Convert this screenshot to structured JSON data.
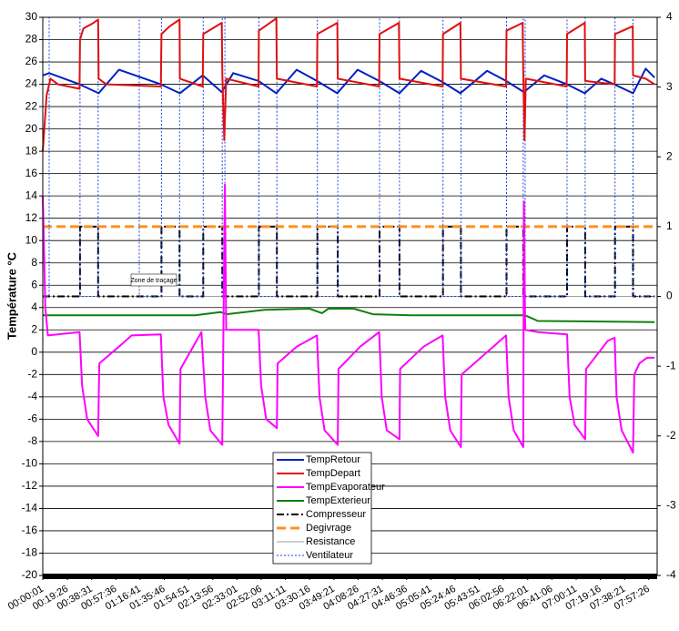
{
  "chart_data": {
    "type": "line",
    "ylabel": "Température °C",
    "annotation": "Zone de traçage",
    "xlim": [
      0,
      484
    ],
    "xticks": [
      {
        "value": 0.02,
        "label": "00:00:01"
      },
      {
        "value": 19.43,
        "label": "00:19:26"
      },
      {
        "value": 38.52,
        "label": "00:38:31"
      },
      {
        "value": 57.6,
        "label": "00:57:36"
      },
      {
        "value": 76.68,
        "label": "01:16:41"
      },
      {
        "value": 95.77,
        "label": "01:35:46"
      },
      {
        "value": 114.85,
        "label": "01:54:51"
      },
      {
        "value": 133.93,
        "label": "02:13:56"
      },
      {
        "value": 153.02,
        "label": "02:33:01"
      },
      {
        "value": 172.1,
        "label": "02:52:06"
      },
      {
        "value": 191.18,
        "label": "03:11:11"
      },
      {
        "value": 210.27,
        "label": "03:30:16"
      },
      {
        "value": 229.35,
        "label": "03:49:21"
      },
      {
        "value": 248.43,
        "label": "04:08:26"
      },
      {
        "value": 267.52,
        "label": "04:27:31"
      },
      {
        "value": 286.6,
        "label": "04:46:36"
      },
      {
        "value": 305.68,
        "label": "05:05:41"
      },
      {
        "value": 324.77,
        "label": "05:24:46"
      },
      {
        "value": 343.85,
        "label": "05:43:51"
      },
      {
        "value": 362.93,
        "label": "06:02:56"
      },
      {
        "value": 382.02,
        "label": "06:22:01"
      },
      {
        "value": 401.1,
        "label": "06:41:06"
      },
      {
        "value": 420.18,
        "label": "07:00:11"
      },
      {
        "value": 439.27,
        "label": "07:19:16"
      },
      {
        "value": 458.35,
        "label": "07:38:21"
      },
      {
        "value": 477.43,
        "label": "07:57:26"
      }
    ],
    "ylim": [
      -20,
      30
    ],
    "yticks": [
      -20,
      -18,
      -16,
      -14,
      -12,
      -10,
      -8,
      -6,
      -4,
      -2,
      0,
      2,
      4,
      6,
      8,
      10,
      12,
      14,
      16,
      18,
      20,
      22,
      24,
      26,
      28,
      30
    ],
    "y2lim": [
      -4,
      4
    ],
    "y2ticks": [
      -4,
      -3,
      -2,
      -1,
      0,
      1,
      2,
      3,
      4
    ],
    "grid": true,
    "series": [
      {
        "name": "TempRetour",
        "color": "#0020c0",
        "line_style": "solid",
        "x": [
          0,
          5,
          29,
          44,
          60,
          93,
          108,
          126,
          141,
          150,
          170,
          184,
          200,
          216,
          232,
          248,
          265,
          281,
          298,
          315,
          329,
          350,
          365,
          379,
          395,
          413,
          427,
          440,
          450,
          465,
          475,
          482
        ],
        "values": [
          24.8,
          25,
          24,
          23.2,
          25.3,
          24,
          23.2,
          24.8,
          23.3,
          25,
          24.3,
          23.2,
          25.3,
          24.3,
          23.2,
          25.3,
          24.3,
          23.2,
          25.2,
          24.2,
          23.2,
          25.2,
          24.3,
          23.3,
          24.8,
          24,
          23.2,
          24.5,
          24,
          23.2,
          25.4,
          24.6
        ]
      },
      {
        "name": "TempDepart",
        "color": "#e01010",
        "line_style": "solid",
        "x": [
          0,
          3,
          6,
          12,
          29,
          29.3,
          32,
          40,
          43.6,
          44,
          50,
          93,
          93.5,
          100,
          107.8,
          108,
          126,
          126.4,
          141,
          141.5,
          143,
          144.5,
          170,
          170.2,
          184,
          184.4,
          216,
          216.3,
          232,
          232.4,
          265,
          265.3,
          280.6,
          281,
          315,
          315.3,
          329,
          329.4,
          365,
          365.3,
          378,
          378.5,
          379.5,
          380.5,
          412.7,
          413,
          427,
          427.3,
          450.5,
          450.8,
          464.8,
          465,
          475,
          482
        ],
        "values": [
          18,
          23,
          24.5,
          24,
          23.6,
          28,
          29,
          29.5,
          29.8,
          24.5,
          24,
          23.8,
          28.5,
          29.2,
          29.8,
          24.5,
          23.8,
          28.5,
          29.5,
          24.8,
          19,
          24.5,
          23.8,
          28.8,
          29.9,
          24.5,
          23.8,
          28.5,
          29.5,
          24.5,
          23.8,
          28.5,
          29.5,
          24.5,
          23.8,
          28.5,
          29.5,
          24.5,
          23.8,
          28.8,
          29.5,
          25,
          19,
          24.5,
          23.8,
          28.5,
          29.5,
          24.3,
          24,
          28.5,
          29.2,
          24.8,
          24.5,
          24
        ]
      },
      {
        "name": "TempEvaporateur",
        "color": "#ff00ff",
        "line_style": "solid",
        "x": [
          0,
          2,
          4,
          29,
          31,
          35,
          43.6,
          44.5,
          60,
          70,
          93,
          95,
          99,
          107.8,
          108.5,
          125,
          128,
          132,
          141.4,
          143.5,
          144.5,
          170,
          172,
          176,
          184.4,
          185,
          200,
          216,
          218,
          222,
          232.4,
          233,
          250,
          265,
          267,
          271,
          281,
          281.5,
          300,
          315,
          317,
          321,
          329.4,
          330,
          350,
          365,
          367,
          371,
          378.5,
          379,
          380,
          390,
          413,
          415,
          419,
          427.3,
          428,
          445,
          450.5,
          452,
          456,
          465,
          466,
          470,
          476,
          482
        ],
        "values": [
          14,
          4,
          1.5,
          1.8,
          -3,
          -6,
          -7.5,
          -1,
          0.5,
          1.5,
          1.6,
          -4,
          -6.5,
          -8.2,
          -1.5,
          1.8,
          -4,
          -7,
          -8.3,
          15,
          2,
          2,
          -3,
          -6,
          -6.8,
          -1,
          0.5,
          1.5,
          -4,
          -7,
          -8.3,
          -1.5,
          0.5,
          1.8,
          -4,
          -7,
          -7.8,
          -1.5,
          0.5,
          1.5,
          -4,
          -7,
          -8.5,
          -2,
          0,
          1.5,
          -4,
          -7,
          -8.5,
          13.5,
          2,
          1.8,
          1.6,
          -4,
          -6.5,
          -7.8,
          -1.5,
          1,
          1.3,
          -4,
          -7,
          -9,
          -2,
          -1,
          -0.5,
          -0.5
        ]
      },
      {
        "name": "TempExterieur",
        "color": "#108010",
        "line_style": "solid",
        "x": [
          0,
          120,
          140,
          145,
          175,
          210,
          220,
          225,
          245,
          260,
          290,
          380,
          390,
          482
        ],
        "values": [
          3.3,
          3.3,
          3.6,
          3.4,
          3.8,
          3.9,
          3.5,
          3.9,
          3.9,
          3.4,
          3.3,
          3.3,
          2.8,
          2.7
        ]
      },
      {
        "name": "Compresseur",
        "color": "#000000",
        "line_style": "dashdot",
        "axis": "y2",
        "x": [
          0,
          29.3,
          29.3,
          43.6,
          43.6,
          93.5,
          93.5,
          107.8,
          107.8,
          126.4,
          126.4,
          141.4,
          141.4,
          170.2,
          170.2,
          184.4,
          184.4,
          216.3,
          216.3,
          232.4,
          232.4,
          265.3,
          265.3,
          281,
          281,
          315.3,
          315.3,
          329.4,
          329.4,
          365.3,
          365.3,
          378.5,
          378.5,
          413,
          413,
          427.3,
          427.3,
          450.8,
          450.8,
          465,
          465,
          482
        ],
        "values": [
          0,
          0,
          1,
          1,
          0,
          0,
          1,
          1,
          0,
          0,
          1,
          1,
          0,
          0,
          1,
          1,
          0,
          0,
          1,
          1,
          0,
          0,
          1,
          1,
          0,
          0,
          1,
          1,
          0,
          0,
          1,
          1,
          0,
          0,
          1,
          1,
          0,
          0,
          1,
          1,
          0,
          0
        ]
      },
      {
        "name": "Degivrage",
        "color": "#ff9020",
        "line_style": "dashed",
        "axis": "y2",
        "x": [
          0,
          482
        ],
        "values": [
          1,
          1
        ]
      },
      {
        "name": "Resistance",
        "color": "#a0a0a0",
        "line_style": "solid",
        "axis": "y2",
        "x": [
          0,
          482
        ],
        "values": [
          0,
          0
        ]
      },
      {
        "name": "Ventilateur",
        "color": "#2040e0",
        "line_style": "dotted",
        "axis": "y2",
        "x": [
          0,
          5,
          5,
          29.3,
          29.3,
          43.6,
          43.6,
          76,
          76,
          93.5,
          93.5,
          107.8,
          107.8,
          126.4,
          126.4,
          141.4,
          141.4,
          143.5,
          143.5,
          170.2,
          170.2,
          184.4,
          184.4,
          216.3,
          216.3,
          232.4,
          232.4,
          265.3,
          265.3,
          281,
          281,
          315.3,
          315.3,
          329.4,
          329.4,
          365.3,
          365.3,
          378.5,
          378.5,
          380,
          380,
          413,
          413,
          427.3,
          427.3,
          450.8,
          450.8,
          465,
          465,
          482
        ],
        "values": [
          0,
          0,
          4,
          4,
          0,
          0,
          4,
          4,
          0,
          0,
          4,
          4,
          0,
          0,
          4,
          4,
          0,
          0,
          4,
          4,
          0,
          0,
          4,
          4,
          0,
          0,
          4,
          4,
          0,
          0,
          4,
          4,
          0,
          0,
          4,
          4,
          0,
          0,
          4,
          4,
          0,
          0,
          4,
          4,
          0,
          0,
          4,
          4,
          0,
          0
        ]
      }
    ]
  }
}
